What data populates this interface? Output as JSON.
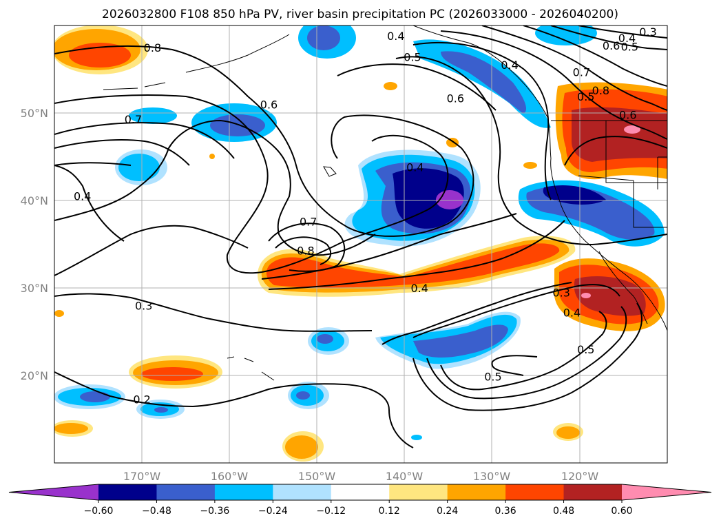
{
  "title": "2026032800 F108 850 hPa PV, river basin precipitation PC (2026033000 - 2026040200)",
  "map": {
    "lon_range": [
      -180,
      -110
    ],
    "lat_range": [
      10,
      60
    ],
    "lon_ticks": [
      {
        "value": -170,
        "label": "170°W"
      },
      {
        "value": -160,
        "label": "160°W"
      },
      {
        "value": -150,
        "label": "150°W"
      },
      {
        "value": -140,
        "label": "140°W"
      },
      {
        "value": -130,
        "label": "130°W"
      },
      {
        "value": -120,
        "label": "120°W"
      }
    ],
    "lat_ticks": [
      {
        "value": 50,
        "label": "50°N"
      },
      {
        "value": 40,
        "label": "40°N"
      },
      {
        "value": 30,
        "label": "30°N"
      },
      {
        "value": 20,
        "label": "20°N"
      }
    ],
    "gridlines": true,
    "contour_color": "#000000",
    "contour_labels": [
      {
        "text": "0.8",
        "lon": -168.8,
        "lat": 57.5
      },
      {
        "text": "0.7",
        "lon": -171.0,
        "lat": 49.3
      },
      {
        "text": "0.6",
        "lon": -155.5,
        "lat": 51.0
      },
      {
        "text": "0.4",
        "lon": -176.8,
        "lat": 40.5
      },
      {
        "text": "0.7",
        "lon": -151.0,
        "lat": 37.6
      },
      {
        "text": "0.8",
        "lon": -151.3,
        "lat": 34.3
      },
      {
        "text": "0.3",
        "lon": -169.8,
        "lat": 28.0
      },
      {
        "text": "0.2",
        "lon": -170.0,
        "lat": 17.3
      },
      {
        "text": "0.4",
        "lon": -141.0,
        "lat": 58.8
      },
      {
        "text": "0.5",
        "lon": -139.1,
        "lat": 56.4
      },
      {
        "text": "0.6",
        "lon": -134.2,
        "lat": 51.7
      },
      {
        "text": "0.4",
        "lon": -138.8,
        "lat": 43.8
      },
      {
        "text": "0.4",
        "lon": -138.3,
        "lat": 30.0
      },
      {
        "text": "0.4",
        "lon": -128.0,
        "lat": 55.5
      },
      {
        "text": "0.3",
        "lon": -112.2,
        "lat": 59.3
      },
      {
        "text": "0.4",
        "lon": -114.6,
        "lat": 58.6
      },
      {
        "text": "0.6",
        "lon": -116.4,
        "lat": 57.7
      },
      {
        "text": "0.5",
        "lon": -114.3,
        "lat": 57.6
      },
      {
        "text": "0.7",
        "lon": -119.8,
        "lat": 54.7
      },
      {
        "text": "0.8",
        "lon": -117.6,
        "lat": 52.6
      },
      {
        "text": "0.5",
        "lon": -119.3,
        "lat": 51.9
      },
      {
        "text": "0.6",
        "lon": -114.5,
        "lat": 49.8
      },
      {
        "text": "0.3",
        "lon": -122.1,
        "lat": 29.5
      },
      {
        "text": "0.4",
        "lon": -120.9,
        "lat": 27.2
      },
      {
        "text": "0.5",
        "lon": -119.3,
        "lat": 23.0
      },
      {
        "text": "0.5",
        "lon": -129.9,
        "lat": 19.9
      }
    ]
  },
  "chart_data": {
    "type": "map-contour",
    "field_lines": "850 hPa PV",
    "field_fill": "river basin precipitation PC",
    "colorbar": {
      "extend": "both",
      "boundaries": [
        -0.6,
        -0.48,
        -0.36,
        -0.24,
        -0.12,
        0.12,
        0.24,
        0.36,
        0.48,
        0.6
      ],
      "tick_labels": [
        "−0.60",
        "−0.48",
        "−0.36",
        "−0.24",
        "−0.12",
        "0.12",
        "0.24",
        "0.36",
        "0.48",
        "0.60"
      ],
      "colors": [
        "#9932cc",
        "#00008b",
        "#3a5fcd",
        "#00bfff",
        "#b0e2ff",
        "#ffffff",
        "#ffe680",
        "#ffa500",
        "#ff4500",
        "#b22222",
        "#ff8cb0"
      ]
    }
  }
}
